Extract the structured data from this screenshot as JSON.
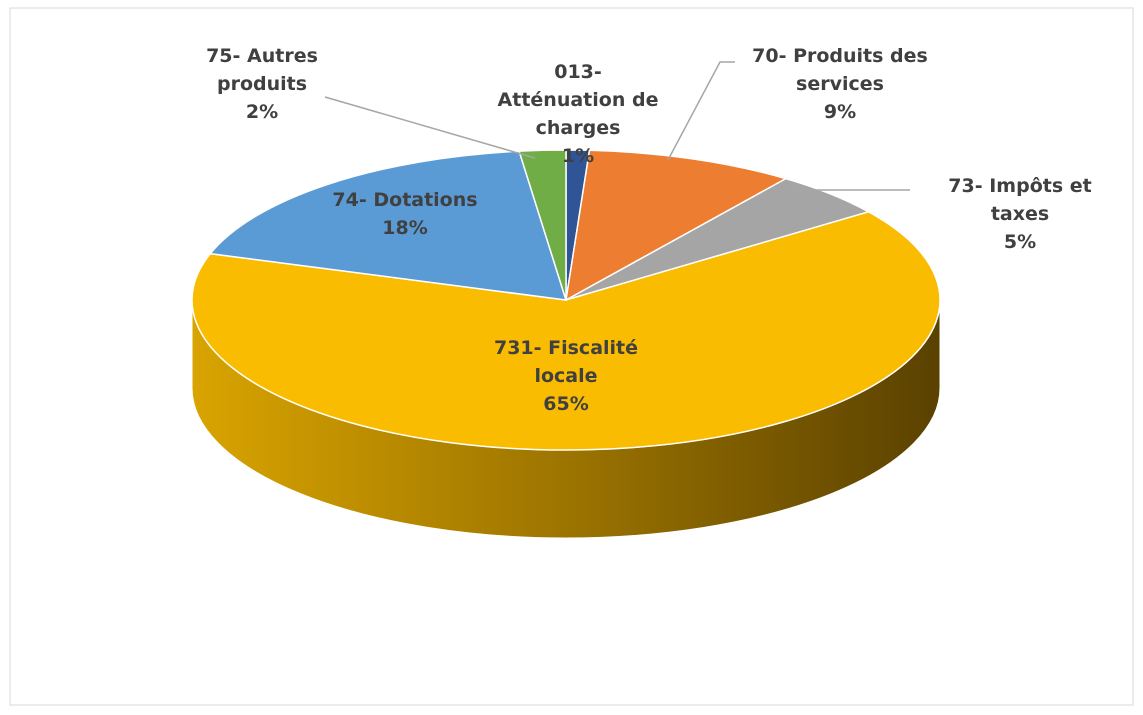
{
  "chart_data": {
    "type": "pie3d",
    "categories": [
      "013- Atténuation de charges",
      "70- Produits des services",
      "73- Impôts et taxes",
      "731- Fiscalité locale",
      "74- Dotations",
      "75- Autres produits"
    ],
    "values": [
      1,
      9,
      5,
      65,
      18,
      2
    ],
    "value_labels": [
      "1%",
      "9%",
      "5%",
      "65%",
      "18%",
      "2%"
    ],
    "colors": [
      "#2f5597",
      "#ed7d31",
      "#a5a5a5",
      "#f9bc00",
      "#5b9bd5",
      "#70ad47"
    ]
  }
}
